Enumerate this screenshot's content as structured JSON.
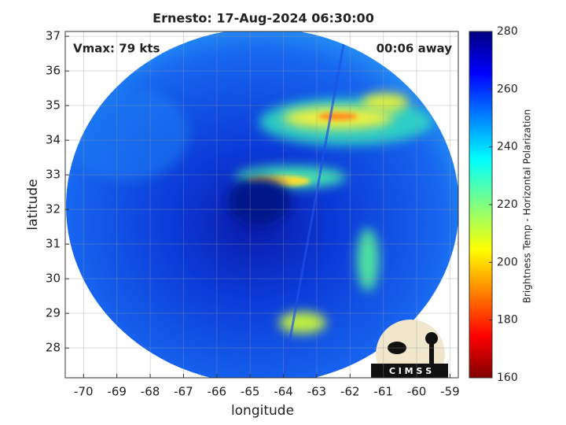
{
  "chart_data": {
    "type": "image",
    "title": "Ernesto: 17-Aug-2024 06:30:00",
    "annotations": [
      "Vmax: 79 kts",
      "00:06 away"
    ],
    "xlabel": "longitude",
    "ylabel": "latitude",
    "xlim": [
      -70.55,
      -58.75
    ],
    "ylim": [
      27.14,
      37.14
    ],
    "xticks": [
      -70,
      -69,
      -68,
      -67,
      -66,
      -65,
      -64,
      -63,
      -62,
      -61,
      -60,
      -59
    ],
    "yticks": [
      28,
      29,
      30,
      31,
      32,
      33,
      34,
      35,
      36,
      37
    ],
    "grid": true,
    "colorbar": {
      "label": "Brightness Temp - Horizontal Polarization",
      "lim": [
        160,
        280
      ],
      "ticks": [
        160,
        180,
        200,
        220,
        240,
        260,
        280
      ],
      "colormap": "jet",
      "reversed": false
    },
    "logo": "C I M S S"
  }
}
